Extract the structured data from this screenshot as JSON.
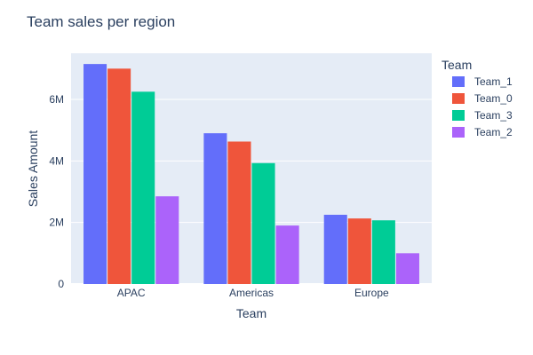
{
  "chart_data": {
    "type": "bar",
    "title": "Team sales per region",
    "xlabel": "Team",
    "ylabel": "Sales Amount",
    "categories": [
      "APAC",
      "Americas",
      "Europe"
    ],
    "ylim": [
      0,
      7500000
    ],
    "y_ticks": [
      0,
      2000000,
      4000000,
      6000000
    ],
    "y_tick_labels": [
      "0",
      "2M",
      "4M",
      "6M"
    ],
    "grid": true,
    "legend_title": "Team",
    "legend_position": "right",
    "background_color": "#e5ecf6",
    "series": [
      {
        "name": "Team_1",
        "color": "#636efa",
        "values": [
          7150000,
          4900000,
          2250000
        ]
      },
      {
        "name": "Team_0",
        "color": "#ef553b",
        "values": [
          7000000,
          4630000,
          2130000
        ]
      },
      {
        "name": "Team_3",
        "color": "#00cc96",
        "values": [
          6250000,
          3930000,
          2070000
        ]
      },
      {
        "name": "Team_2",
        "color": "#ab63fa",
        "values": [
          2850000,
          1900000,
          1000000
        ]
      }
    ]
  }
}
